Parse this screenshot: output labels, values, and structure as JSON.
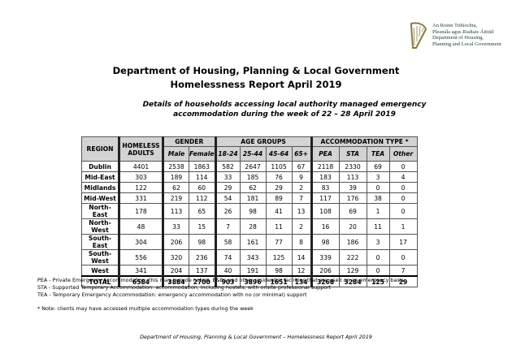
{
  "header": {
    "logo_lines": [
      "An Roinn Tithíochta,",
      "Pleanála agus Rialtais Áitiúil",
      "Department of Housing,",
      "Planning and Local Government"
    ],
    "title": "Department of Housing, Planning & Local Government",
    "title2": "Homelessness Report April 2019",
    "subtitle": "Details of households accessing local authority managed emergency",
    "subtitle2": "accommodation during the week of 22 – 28 April 2019"
  },
  "table": {
    "region": "REGION",
    "adults": "HOMELESS ADULTS",
    "groups": [
      "GENDER",
      "AGE GROUPS",
      "ACCOMMODATION TYPE *"
    ],
    "subheaders": [
      "Male",
      "Female",
      "18-24",
      "25-44",
      "45-64",
      "65+",
      "PEA",
      "STA",
      "TEA",
      "Other"
    ],
    "rows": [
      [
        "Dublin",
        4401,
        2538,
        1863,
        582,
        2647,
        1105,
        67,
        2118,
        2330,
        69,
        0
      ],
      [
        "Mid-East",
        303,
        189,
        114,
        33,
        185,
        76,
        9,
        183,
        113,
        3,
        4
      ],
      [
        "Midlands",
        122,
        62,
        60,
        29,
        62,
        29,
        2,
        83,
        39,
        0,
        0
      ],
      [
        "Mid-West",
        331,
        219,
        112,
        54,
        181,
        89,
        7,
        117,
        176,
        38,
        0
      ],
      [
        "North-East",
        178,
        113,
        65,
        26,
        98,
        41,
        13,
        108,
        69,
        1,
        0
      ],
      [
        "North-West",
        48,
        33,
        15,
        7,
        28,
        11,
        2,
        16,
        20,
        11,
        1
      ],
      [
        "South-East",
        304,
        206,
        98,
        58,
        161,
        77,
        8,
        98,
        186,
        3,
        17
      ],
      [
        "South-West",
        556,
        320,
        236,
        74,
        343,
        125,
        14,
        339,
        222,
        0,
        0
      ],
      [
        "West",
        341,
        204,
        137,
        40,
        191,
        98,
        12,
        206,
        129,
        0,
        7
      ],
      [
        "TOTAL",
        6584,
        3884,
        2700,
        903,
        3896,
        1651,
        134,
        3268,
        3284,
        125,
        29
      ]
    ]
  },
  "notes": [
    "PEA - Private Emergency Accommodation: this may include hotels, B&Bs and other residential facilities that are used on an emergency basis",
    "STA - Supported Temporary Accommodation: accommodation, including hostels, with onsite professional support",
    "TEA - Temporary Emergency Accommodation: emergency accommodation with no (or minimal) support",
    "* Note: clients may have accessed multiple accommodation types during the week"
  ],
  "footer": "Department of Housing, Planning & Local Government – Homelessness Report April 2019"
}
